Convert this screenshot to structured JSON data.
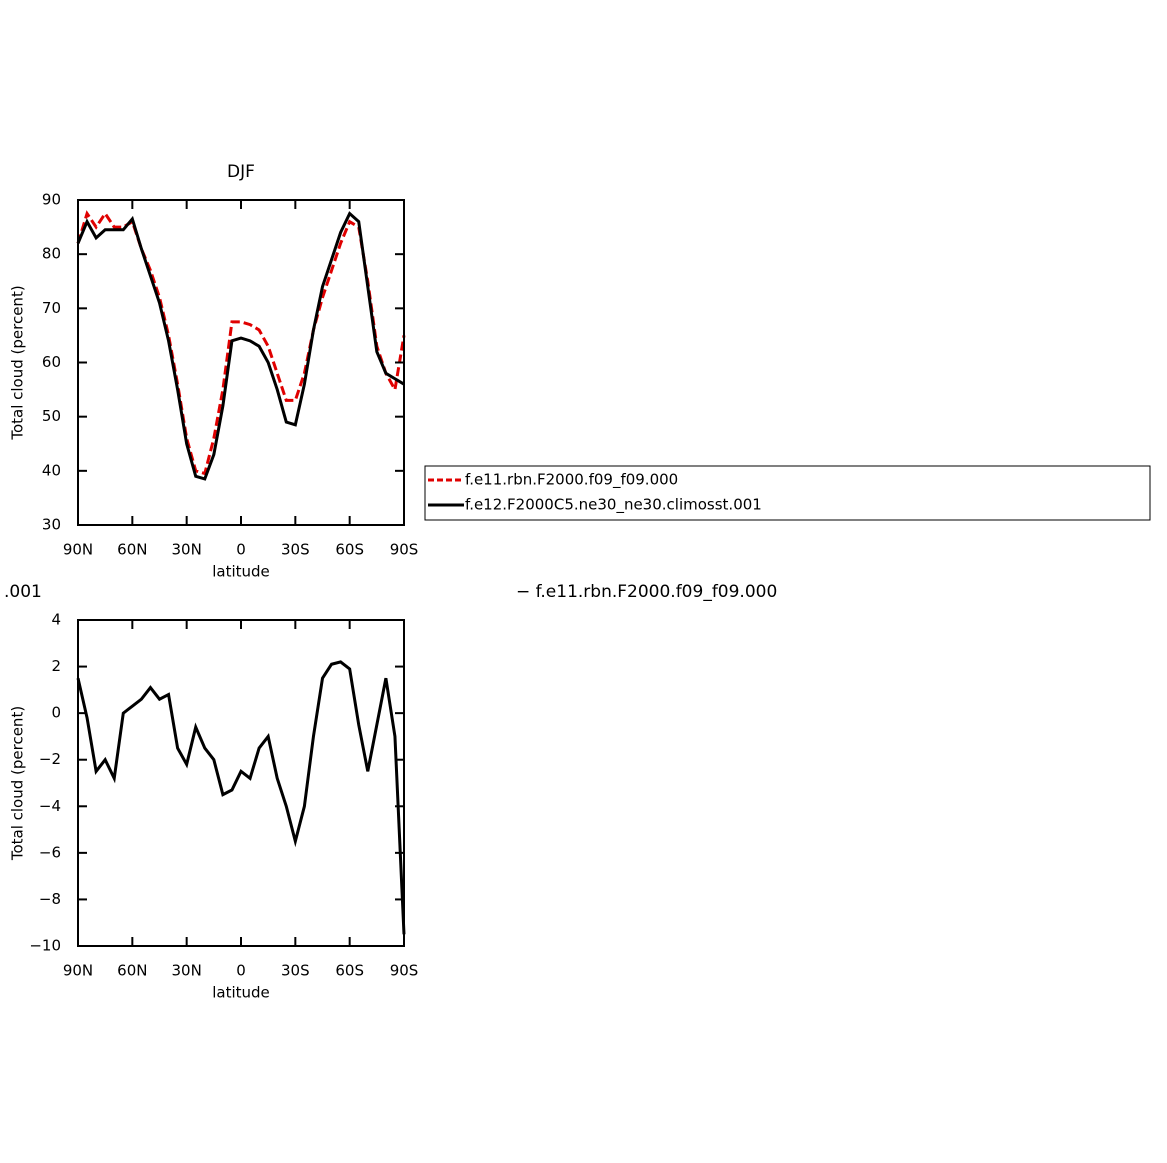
{
  "chart_data": [
    {
      "type": "line",
      "title": "DJF",
      "x_label": "latitude",
      "y_label": "Total cloud (percent)",
      "x": [
        90,
        85,
        80,
        75,
        70,
        65,
        60,
        55,
        50,
        45,
        40,
        35,
        30,
        25,
        20,
        15,
        10,
        5,
        0,
        -5,
        -10,
        -15,
        -20,
        -25,
        -30,
        -35,
        -40,
        -45,
        -50,
        -55,
        -60,
        -65,
        -70,
        -75,
        -80,
        -85,
        -90
      ],
      "xlim": [
        90,
        -90
      ],
      "xticks": [
        {
          "value": 90,
          "label": "90N"
        },
        {
          "value": 60,
          "label": "60N"
        },
        {
          "value": 30,
          "label": "30N"
        },
        0,
        {
          "value": -30,
          "label": "30S"
        },
        {
          "value": -60,
          "label": "60S"
        },
        {
          "value": -90,
          "label": "90S"
        }
      ],
      "ylim": [
        30,
        90
      ],
      "yticks": [
        30,
        40,
        50,
        60,
        70,
        80,
        90
      ],
      "series": [
        {
          "name": "f.e11.rbn.F2000.f09_f09.000",
          "color": "#e00000",
          "dash": "dashed",
          "values": [
            82,
            87.5,
            85,
            87.5,
            85,
            85,
            86,
            81,
            77,
            72,
            65,
            56,
            46,
            40,
            39.5,
            46,
            55,
            67.5,
            67.5,
            67,
            66,
            63,
            58,
            53,
            53,
            58,
            66,
            72,
            77,
            82,
            86,
            85,
            75,
            63,
            58,
            55,
            65
          ]
        },
        {
          "name": "f.e12.F2000C5.ne30_ne30.climosst.001",
          "color": "#000000",
          "dash": "solid",
          "values": [
            82,
            86,
            83,
            84.5,
            84.5,
            84.5,
            86.5,
            81,
            76,
            71,
            64,
            55,
            45,
            39,
            38.5,
            43,
            52,
            64,
            64.5,
            64,
            63,
            60,
            55,
            49,
            48.5,
            56,
            66,
            74,
            79,
            84,
            87.5,
            86,
            74,
            62,
            58,
            57,
            56
          ]
        }
      ]
    },
    {
      "type": "line",
      "title_left": ".001",
      "title_right": "− f.e11.rbn.F2000.f09_f09.000",
      "x_label": "latitude",
      "y_label": "Total cloud (percent)",
      "x": [
        90,
        85,
        80,
        75,
        70,
        65,
        60,
        55,
        50,
        45,
        40,
        35,
        30,
        25,
        20,
        15,
        10,
        5,
        0,
        -5,
        -10,
        -15,
        -20,
        -25,
        -30,
        -35,
        -40,
        -45,
        -50,
        -55,
        -60,
        -65,
        -70,
        -75,
        -80,
        -85,
        -90
      ],
      "xlim": [
        90,
        -90
      ],
      "xticks": [
        {
          "value": 90,
          "label": "90N"
        },
        {
          "value": 60,
          "label": "60N"
        },
        {
          "value": 30,
          "label": "30N"
        },
        0,
        {
          "value": -30,
          "label": "30S"
        },
        {
          "value": -60,
          "label": "60S"
        },
        {
          "value": -90,
          "label": "90S"
        }
      ],
      "ylim": [
        -10,
        4
      ],
      "yticks": [
        {
          "value": -10,
          "label": "−10"
        },
        {
          "value": -8,
          "label": "−8"
        },
        {
          "value": -6,
          "label": "−6"
        },
        {
          "value": -4,
          "label": "−4"
        },
        {
          "value": -2,
          "label": "−2"
        },
        0,
        2,
        4
      ],
      "series": [
        {
          "color": "#000000",
          "dash": "solid",
          "values": [
            1.5,
            -0.2,
            -2.5,
            -2,
            -2.8,
            0,
            0.3,
            0.6,
            1.1,
            0.6,
            0.8,
            -1.5,
            -2.2,
            -0.6,
            -1.5,
            -2,
            -3.5,
            -3.3,
            -2.5,
            -2.8,
            -1.5,
            -1,
            -2.8,
            -4,
            -5.5,
            -4,
            -1,
            1.5,
            2.1,
            2.2,
            1.9,
            -0.5,
            -2.5,
            -0.5,
            1.5,
            -1,
            -9.5
          ]
        }
      ]
    }
  ]
}
